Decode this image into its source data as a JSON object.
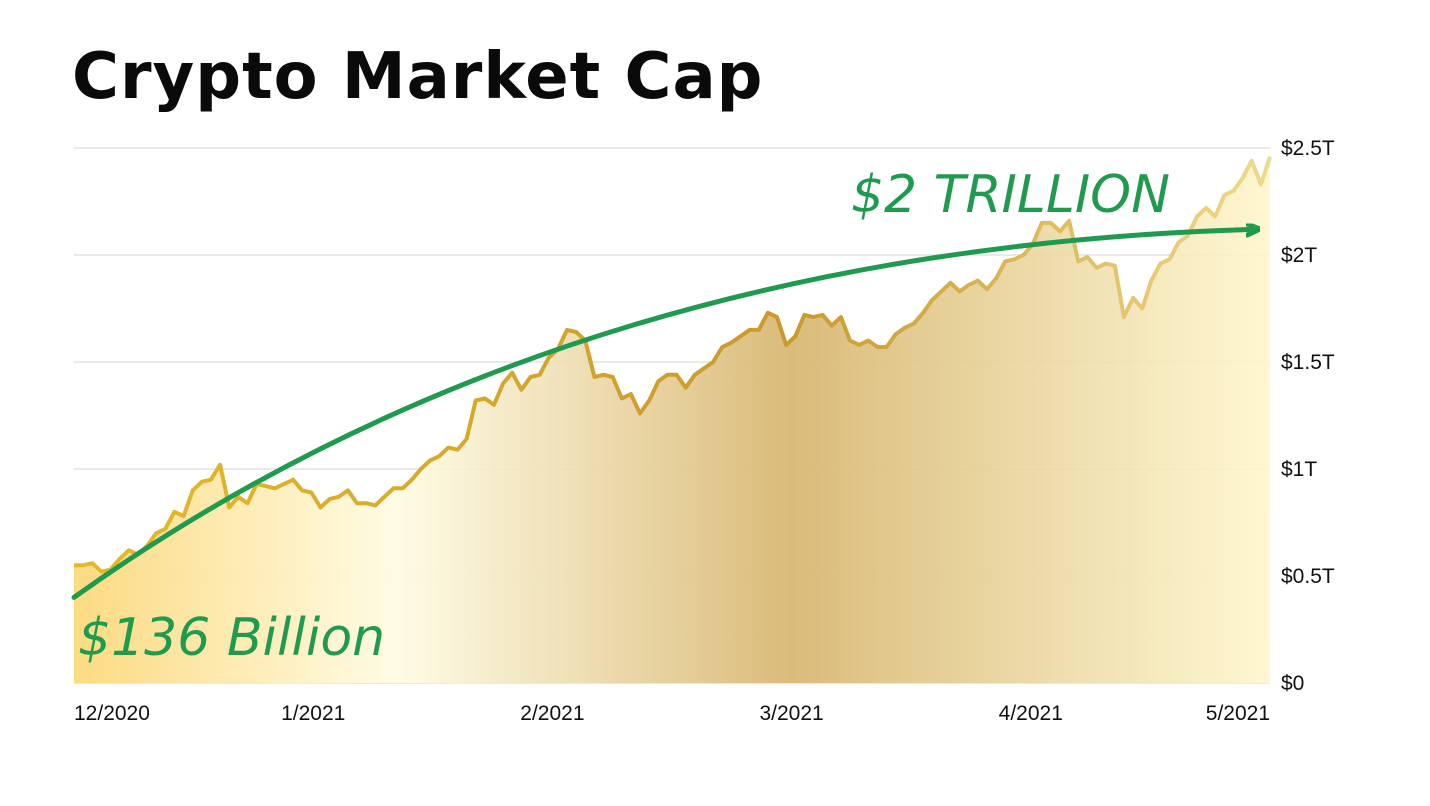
{
  "chart_data": {
    "type": "area",
    "title": "Crypto Market Cap",
    "xlabel": "",
    "ylabel": "",
    "x_ticks": [
      "12/2020",
      "1/2021",
      "2/2021",
      "3/2021",
      "4/2021",
      "5/2021"
    ],
    "y_ticks": [
      "$0",
      "$0.5T",
      "$1T",
      "$1.5T",
      "$2T",
      "$2.5T"
    ],
    "ylim": [
      0,
      2.5
    ],
    "y_unit": "trillion USD",
    "grid": true,
    "series": [
      {
        "values": [
          0.55,
          0.55,
          0.56,
          0.52,
          0.53,
          0.58,
          0.62,
          0.6,
          0.64,
          0.7,
          0.72,
          0.8,
          0.78,
          0.9,
          0.94,
          0.95,
          1.02,
          0.82,
          0.87,
          0.84,
          0.93,
          0.92,
          0.91,
          0.93,
          0.95,
          0.9,
          0.89,
          0.82,
          0.86,
          0.87,
          0.9,
          0.84,
          0.84,
          0.83,
          0.87,
          0.91,
          0.91,
          0.95,
          1.0,
          1.04,
          1.06,
          1.1,
          1.09,
          1.14,
          1.32,
          1.33,
          1.3,
          1.4,
          1.45,
          1.37,
          1.43,
          1.44,
          1.52,
          1.56,
          1.65,
          1.64,
          1.6,
          1.43,
          1.44,
          1.43,
          1.33,
          1.35,
          1.26,
          1.32,
          1.41,
          1.44,
          1.44,
          1.38,
          1.44,
          1.47,
          1.5,
          1.57,
          1.59,
          1.62,
          1.65,
          1.65,
          1.73,
          1.71,
          1.58,
          1.62,
          1.72,
          1.71,
          1.72,
          1.67,
          1.71,
          1.6,
          1.58,
          1.6,
          1.57,
          1.57,
          1.63,
          1.66,
          1.68,
          1.73,
          1.79,
          1.83,
          1.87,
          1.83,
          1.86,
          1.88,
          1.84,
          1.89,
          1.97,
          1.98,
          2.0,
          2.05,
          2.15,
          2.15,
          2.11,
          2.16,
          1.97,
          1.99,
          1.94,
          1.96,
          1.95,
          1.71,
          1.8,
          1.75,
          1.88,
          1.96,
          1.98,
          2.06,
          2.09,
          2.18,
          2.22,
          2.18,
          2.28,
          2.3,
          2.36,
          2.44,
          2.33,
          2.46
        ]
      }
    ],
    "annotations": [
      {
        "text": "$2 TRILLION",
        "value": 2.0,
        "position": "top-right"
      },
      {
        "text": "$136 Billion",
        "value": 0.136,
        "position": "bottom-left"
      }
    ],
    "colors": {
      "line": "#d9ac2a",
      "fill_light": "#fdf1b8",
      "fill_dark": "#d4b570",
      "arrow": "#1f9a4e",
      "grid": "#e3e3e3"
    }
  }
}
